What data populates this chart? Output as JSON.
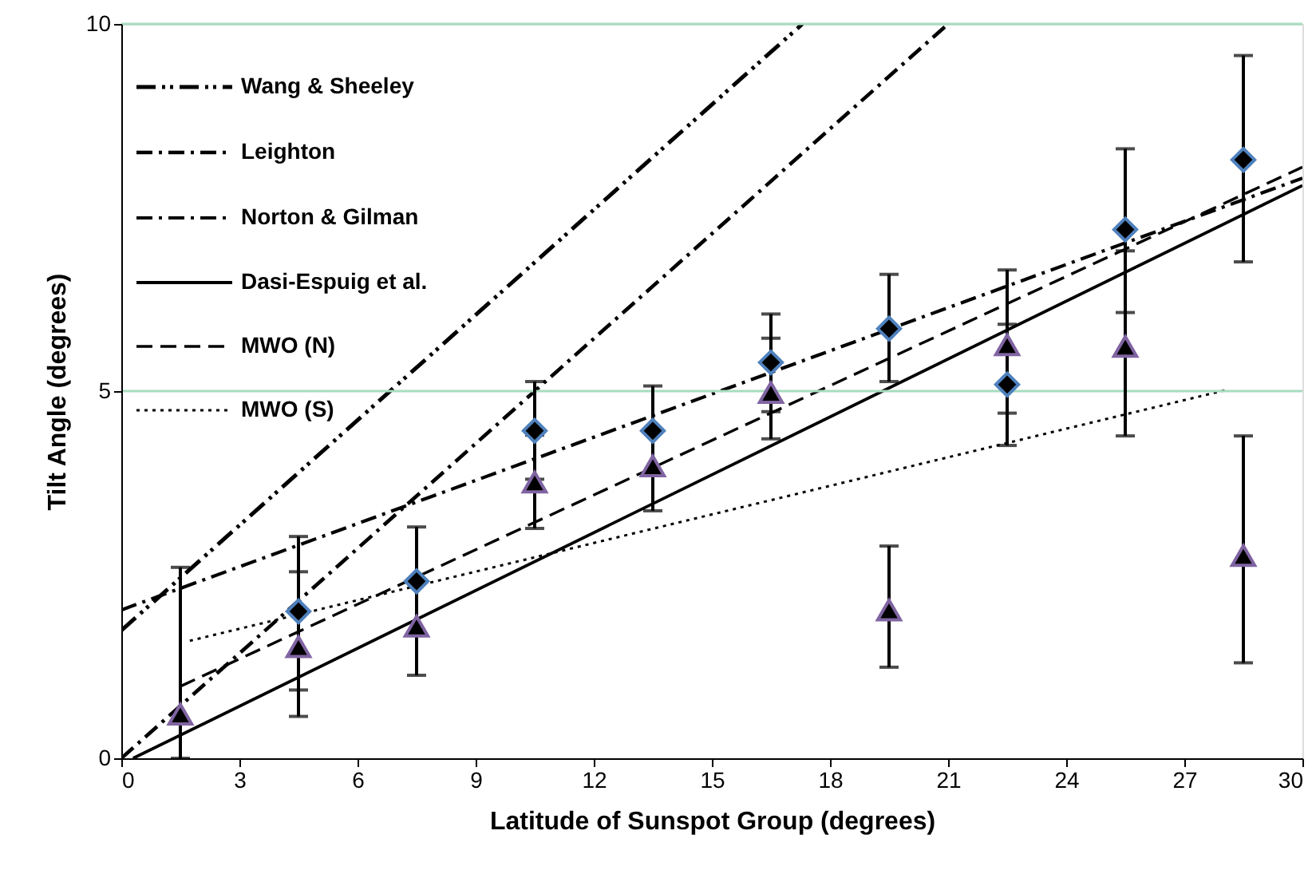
{
  "chart_data": {
    "type": "line",
    "xlabel": "Latitude of Sunspot Group (degrees)",
    "ylabel": "Tilt Angle (degrees)",
    "xlim": [
      0,
      30
    ],
    "ylim": [
      0,
      10
    ],
    "xticks": [
      0,
      3,
      6,
      9,
      12,
      15,
      18,
      21,
      24,
      27,
      30
    ],
    "yticks": [
      0,
      5,
      10
    ],
    "ref_lines": [
      {
        "axis": "y",
        "value": 5,
        "color": "#a8dcc0"
      },
      {
        "axis": "y",
        "value": 10,
        "color": "#a8dcc0"
      }
    ],
    "legend": "top left",
    "series": [
      {
        "name": "Wang & Sheeley",
        "color": "#000000",
        "line_style": "dashdotdot",
        "x": [
          0,
          17.3
        ],
        "values": [
          1.74,
          10
        ]
      },
      {
        "name": "Leighton",
        "color": "#000000",
        "line_style": "dashdot",
        "x": [
          0,
          21
        ],
        "values": [
          0,
          10
        ]
      },
      {
        "name": "Norton & Gilman",
        "color": "#000000",
        "line_style": "dashdot",
        "x": [
          0,
          30
        ],
        "values": [
          2.02,
          7.9
        ]
      },
      {
        "name": "Dasi-Espuig et al.",
        "color": "#000000",
        "line_style": "solid",
        "x": [
          0.3,
          30
        ],
        "values": [
          0,
          7.8
        ]
      },
      {
        "name": "MWO (N)",
        "color": "#000000",
        "line_style": "dashed",
        "x": [
          1.5,
          30
        ],
        "values": [
          0.98,
          8.05
        ]
      },
      {
        "name": "MWO (S)",
        "color": "#000000",
        "line_style": "dotted",
        "x": [
          1.74,
          28.1
        ],
        "values": [
          1.6,
          5.02
        ]
      },
      {
        "type": "scatter",
        "marker": "diamond",
        "color": "#4f81bd",
        "x": [
          4.5,
          7.5,
          10.5,
          13.5,
          16.5,
          19.5,
          22.5,
          25.5,
          28.5
        ],
        "values": [
          2.0,
          2.41,
          4.46,
          4.46,
          5.39,
          5.85,
          5.09,
          7.2,
          8.15
        ],
        "errors": [
          [
            0.93,
            3.02
          ],
          null,
          [
            3.8,
            5.13
          ],
          null,
          [
            4.72,
            6.05
          ],
          [
            5.13,
            6.59
          ],
          [
            4.26,
            5.91
          ],
          [
            6.07,
            8.3
          ],
          [
            6.76,
            9.57
          ]
        ]
      },
      {
        "type": "scatter",
        "marker": "triangle",
        "color": "#8064a2",
        "x": [
          1.5,
          4.5,
          7.5,
          10.5,
          13.5,
          16.5,
          19.5,
          22.5,
          25.5,
          28.5
        ],
        "values": [
          0.6,
          1.52,
          1.8,
          3.76,
          3.98,
          4.98,
          2.02,
          5.63,
          5.61,
          2.76
        ],
        "errors": [
          [
            0,
            2.6
          ],
          [
            0.57,
            2.54
          ],
          [
            1.13,
            3.15
          ],
          [
            3.13,
            4.4
          ],
          [
            3.37,
            5.07
          ],
          [
            4.35,
            5.72
          ],
          [
            1.24,
            2.89
          ],
          [
            4.7,
            6.65
          ],
          [
            4.39,
            6.91
          ],
          [
            1.3,
            4.39
          ]
        ]
      }
    ]
  }
}
